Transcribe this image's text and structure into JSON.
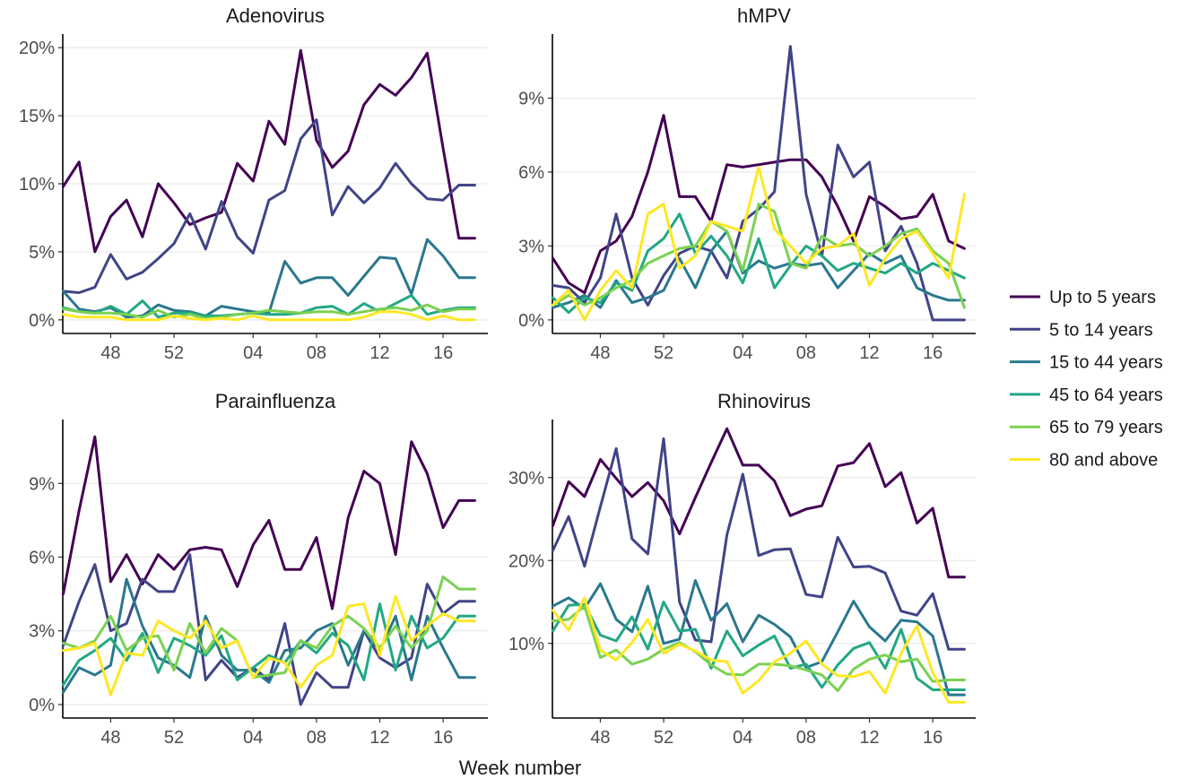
{
  "chart_data": {
    "type": "line",
    "xlabel": "Week number",
    "x_ticks": [
      "48",
      "52",
      "04",
      "08",
      "12",
      "16"
    ],
    "x_weeks": [
      45,
      46,
      47,
      48,
      49,
      50,
      51,
      52,
      53,
      1,
      2,
      3,
      4,
      5,
      6,
      7,
      8,
      9,
      10,
      11,
      12,
      13,
      14,
      15,
      16,
      17,
      18
    ],
    "legend": {
      "position": "right",
      "entries": [
        "Up to 5 years",
        "5 to 14 years",
        "15 to 44 years",
        "45 to 64 years",
        "65 to 79 years",
        "80 and above"
      ]
    },
    "colors": [
      "#440154",
      "#414487",
      "#2A788E",
      "#22A884",
      "#7AD151",
      "#FDE725"
    ],
    "panels": [
      {
        "title": "Adenovirus",
        "y_ticks": [
          0,
          5,
          10,
          15,
          20
        ],
        "y_tick_labels": [
          "0%",
          "5%",
          "10%",
          "15%",
          "20%"
        ],
        "ylim": [
          -1,
          21
        ],
        "series": [
          {
            "name": "Up to 5 years",
            "values": [
              9.8,
              11.6,
              5.0,
              7.6,
              8.8,
              6.1,
              10.0,
              8.6,
              7.0,
              7.5,
              7.9,
              11.5,
              10.2,
              14.6,
              12.9,
              19.8,
              13.2,
              11.2,
              12.4,
              15.8,
              17.3,
              16.5,
              17.8,
              19.6,
              12.6,
              6.0,
              6.0
            ]
          },
          {
            "name": "5 to 14 years",
            "values": [
              2.1,
              2.0,
              2.4,
              4.8,
              3.0,
              3.5,
              4.5,
              5.6,
              7.8,
              5.2,
              8.7,
              6.1,
              4.9,
              8.8,
              9.5,
              13.3,
              14.7,
              7.7,
              9.8,
              8.6,
              9.7,
              11.5,
              10.0,
              8.9,
              8.8,
              9.9,
              9.9
            ]
          },
          {
            "name": "15 to 44 years",
            "values": [
              2.1,
              0.8,
              0.6,
              0.9,
              0.2,
              0.3,
              1.1,
              0.7,
              0.6,
              0.3,
              1.0,
              0.8,
              0.6,
              0.5,
              4.3,
              2.7,
              3.1,
              3.1,
              1.8,
              3.2,
              4.6,
              4.5,
              1.9,
              5.9,
              4.7,
              3.1,
              3.1
            ]
          },
          {
            "name": "45 to 64 years",
            "values": [
              0.9,
              0.6,
              0.5,
              1.0,
              0.4,
              1.4,
              0.2,
              0.5,
              0.5,
              0.3,
              0.3,
              0.4,
              0.5,
              0.4,
              0.4,
              0.5,
              0.9,
              1.0,
              0.4,
              1.2,
              0.6,
              1.2,
              1.8,
              0.4,
              0.7,
              0.9,
              0.9
            ]
          },
          {
            "name": "65 to 79 years",
            "values": [
              0.8,
              0.6,
              0.5,
              0.5,
              0.4,
              0.2,
              0.7,
              0.2,
              0.4,
              0.1,
              0.2,
              0.4,
              0.5,
              0.7,
              0.6,
              0.5,
              0.6,
              0.6,
              0.4,
              0.6,
              0.8,
              0.9,
              0.7,
              1.1,
              0.6,
              0.8,
              0.8
            ]
          },
          {
            "name": "80 and above",
            "values": [
              0.4,
              0.2,
              0.2,
              0.2,
              0.0,
              0.0,
              0.0,
              0.3,
              0.1,
              0.0,
              0.1,
              0.0,
              0.3,
              0.0,
              0.0,
              0.0,
              0.0,
              0.0,
              0.0,
              0.2,
              0.6,
              0.6,
              0.4,
              0.0,
              0.3,
              0.0,
              0.0
            ]
          }
        ]
      },
      {
        "title": "hMPV",
        "y_ticks": [
          0,
          3,
          6,
          9
        ],
        "y_tick_labels": [
          "0%",
          "3%",
          "6%",
          "9%"
        ],
        "ylim": [
          -0.55,
          11.6
        ],
        "series": [
          {
            "name": "Up to 5 years",
            "values": [
              2.5,
              1.5,
              1.1,
              2.8,
              3.2,
              4.2,
              6.0,
              8.3,
              5.0,
              5.0,
              4.0,
              6.3,
              6.2,
              6.3,
              6.4,
              6.5,
              6.5,
              5.8,
              4.6,
              3.2,
              5.0,
              4.6,
              4.1,
              4.2,
              5.1,
              3.2,
              2.9
            ]
          },
          {
            "name": "5 to 14 years",
            "values": [
              1.4,
              1.3,
              0.7,
              1.7,
              4.3,
              1.7,
              0.6,
              1.8,
              2.7,
              3.0,
              2.8,
              1.7,
              4.0,
              4.5,
              5.2,
              11.1,
              5.1,
              2.6,
              7.1,
              5.8,
              6.4,
              2.8,
              3.8,
              2.3,
              0.0,
              0.0,
              0.0
            ]
          },
          {
            "name": "15 to 44 years",
            "values": [
              0.5,
              0.7,
              1.0,
              0.5,
              1.6,
              0.7,
              0.9,
              1.2,
              2.5,
              1.3,
              2.8,
              3.6,
              1.9,
              2.4,
              2.1,
              2.3,
              2.2,
              2.3,
              1.3,
              2.0,
              2.7,
              2.3,
              2.6,
              1.3,
              1.0,
              0.8,
              0.8
            ]
          },
          {
            "name": "45 to 64 years",
            "values": [
              0.9,
              0.3,
              0.9,
              0.7,
              1.5,
              1.2,
              2.8,
              3.3,
              4.3,
              2.7,
              3.4,
              2.6,
              1.5,
              3.3,
              1.3,
              2.2,
              3.0,
              2.6,
              2.0,
              2.3,
              2.1,
              1.9,
              2.3,
              1.9,
              2.3,
              2.0,
              1.7
            ]
          },
          {
            "name": "65 to 79 years",
            "values": [
              0.6,
              1.0,
              0.6,
              0.9,
              1.3,
              1.6,
              2.3,
              2.6,
              2.9,
              3.0,
              4.0,
              3.6,
              2.0,
              4.7,
              4.4,
              2.3,
              2.1,
              3.4,
              3.0,
              3.1,
              2.6,
              3.0,
              3.5,
              3.7,
              2.8,
              2.3,
              0.5
            ]
          },
          {
            "name": "80 and above",
            "values": [
              0.6,
              1.2,
              0.0,
              1.2,
              2.0,
              1.3,
              4.3,
              4.7,
              2.1,
              2.6,
              4.0,
              3.8,
              3.6,
              6.2,
              3.7,
              3.0,
              2.3,
              2.9,
              3.0,
              3.5,
              1.4,
              2.5,
              3.3,
              3.6,
              2.7,
              1.7,
              5.1
            ]
          }
        ]
      },
      {
        "title": "Parainfluenza",
        "y_ticks": [
          0,
          3,
          6,
          9
        ],
        "y_tick_labels": [
          "0%",
          "3%",
          "6%",
          "9%"
        ],
        "ylim": [
          -0.55,
          11.6
        ],
        "series": [
          {
            "name": "Up to 5 years",
            "values": [
              4.5,
              7.9,
              10.9,
              5.0,
              6.1,
              4.9,
              6.1,
              5.5,
              6.3,
              6.4,
              6.3,
              4.8,
              6.5,
              7.5,
              5.5,
              5.5,
              6.8,
              3.9,
              7.6,
              9.5,
              9.0,
              6.1,
              10.7,
              9.4,
              7.2,
              8.3,
              8.3
            ]
          },
          {
            "name": "5 to 14 years",
            "values": [
              2.4,
              4.2,
              5.7,
              3.0,
              3.3,
              5.1,
              4.6,
              4.6,
              6.1,
              1.0,
              1.8,
              1.1,
              1.5,
              1.0,
              3.3,
              0.0,
              1.3,
              0.7,
              0.7,
              3.0,
              1.9,
              1.5,
              1.9,
              4.9,
              3.7,
              4.2,
              4.2
            ]
          },
          {
            "name": "15 to 44 years",
            "values": [
              0.5,
              1.5,
              1.2,
              1.6,
              5.1,
              3.2,
              1.9,
              1.6,
              1.1,
              3.6,
              2.0,
              1.4,
              1.4,
              0.9,
              2.2,
              2.3,
              3.0,
              3.3,
              1.6,
              3.0,
              2.2,
              3.6,
              1.0,
              3.6,
              2.3,
              1.1,
              1.1
            ]
          },
          {
            "name": "45 to 64 years",
            "values": [
              0.8,
              1.8,
              2.2,
              2.7,
              1.8,
              2.9,
              1.3,
              2.7,
              2.4,
              2.0,
              2.8,
              1.0,
              1.5,
              2.0,
              1.7,
              2.6,
              2.1,
              2.9,
              2.4,
              1.0,
              4.1,
              1.4,
              3.6,
              2.3,
              2.7,
              3.6,
              3.6
            ]
          },
          {
            "name": "65 to 79 years",
            "values": [
              2.5,
              2.3,
              2.6,
              3.6,
              2.2,
              2.7,
              2.8,
              1.4,
              3.3,
              2.1,
              3.1,
              2.6,
              1.1,
              1.2,
              1.3,
              2.6,
              2.3,
              3.2,
              3.6,
              3.1,
              2.3,
              3.2,
              2.3,
              3.0,
              5.2,
              4.7,
              4.7
            ]
          },
          {
            "name": "80 and above",
            "values": [
              2.2,
              2.3,
              2.5,
              0.4,
              2.1,
              2.0,
              3.4,
              3.0,
              2.7,
              3.4,
              2.3,
              2.6,
              1.1,
              1.9,
              1.7,
              0.7,
              1.6,
              2.0,
              4.0,
              4.1,
              2.0,
              4.4,
              2.6,
              3.2,
              3.7,
              3.4,
              3.4
            ]
          }
        ]
      },
      {
        "title": "Rhinovirus",
        "y_ticks": [
          10,
          20,
          30
        ],
        "y_tick_labels": [
          "10%",
          "20%",
          "30%"
        ],
        "ylim": [
          1,
          37
        ],
        "series": [
          {
            "name": "Up to 5 years",
            "values": [
              24.2,
              29.5,
              27.7,
              32.2,
              29.9,
              27.7,
              29.4,
              27.2,
              23.2,
              27.6,
              31.8,
              35.9,
              31.5,
              31.5,
              29.6,
              25.4,
              26.2,
              26.6,
              31.4,
              31.8,
              34.1,
              28.9,
              30.6,
              24.5,
              26.3,
              18.0,
              18.0
            ]
          },
          {
            "name": "5 to 14 years",
            "values": [
              21.2,
              25.3,
              19.3,
              26.5,
              33.5,
              22.6,
              20.8,
              34.7,
              15.0,
              10.4,
              10.2,
              23.1,
              30.4,
              20.6,
              21.3,
              21.4,
              15.9,
              15.6,
              22.8,
              19.2,
              19.3,
              18.5,
              13.9,
              13.4,
              16.0,
              9.3,
              9.3
            ]
          },
          {
            "name": "15 to 44 years",
            "values": [
              14.5,
              15.5,
              14.2,
              17.2,
              12.9,
              11.4,
              16.9,
              10.0,
              10.5,
              17.6,
              12.8,
              14.8,
              10.2,
              13.4,
              12.3,
              10.8,
              7.1,
              7.8,
              11.4,
              15.1,
              12.0,
              10.3,
              12.8,
              12.6,
              10.9,
              3.8,
              3.8
            ]
          },
          {
            "name": "45 to 64 years",
            "values": [
              11.5,
              14.6,
              14.7,
              11.0,
              10.3,
              13.2,
              9.3,
              15.0,
              11.5,
              11.7,
              7.0,
              11.5,
              8.5,
              9.8,
              10.9,
              7.0,
              7.5,
              4.7,
              7.4,
              9.4,
              10.1,
              7.0,
              11.7,
              5.8,
              4.4,
              4.4,
              4.4
            ]
          },
          {
            "name": "65 to 79 years",
            "values": [
              12.7,
              12.9,
              14.5,
              8.3,
              9.2,
              7.5,
              8.1,
              9.3,
              10.1,
              9.0,
              7.4,
              6.3,
              6.2,
              7.5,
              7.5,
              7.3,
              6.8,
              6.2,
              4.3,
              6.9,
              8.1,
              8.6,
              7.8,
              8.1,
              5.4,
              5.6,
              5.6
            ]
          },
          {
            "name": "80 and above",
            "values": [
              14.0,
              11.6,
              15.5,
              9.2,
              8.0,
              10.1,
              12.9,
              8.8,
              9.9,
              9.1,
              8.0,
              7.8,
              4.0,
              5.5,
              7.8,
              8.8,
              10.3,
              7.5,
              6.1,
              6.0,
              6.6,
              4.0,
              8.8,
              12.1,
              6.5,
              2.9,
              2.9
            ]
          }
        ]
      }
    ]
  }
}
